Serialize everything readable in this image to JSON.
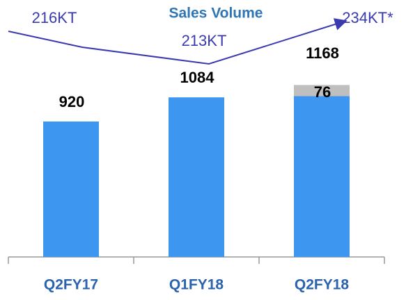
{
  "chart_data": {
    "type": "stacked_bar",
    "title": "Sales Volume",
    "categories": [
      "Q2FY17",
      "Q1FY18",
      "Q2FY18"
    ],
    "series": [
      {
        "color": "#3d97f0",
        "values": [
          920,
          1084,
          1092
        ]
      },
      {
        "color": "#bfbfbf",
        "values": [
          null,
          null,
          76
        ]
      }
    ],
    "totals": [
      920,
      1084,
      1168
    ],
    "annotations": [
      "216KT",
      "213KT",
      "234KT*"
    ]
  }
}
